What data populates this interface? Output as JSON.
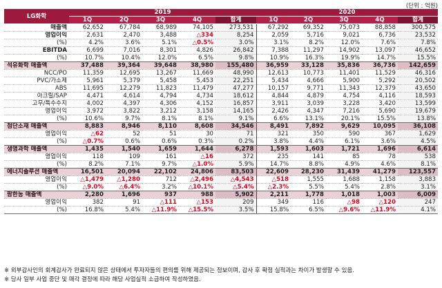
{
  "unit": "(단위 : 억원)",
  "header": {
    "company": "LG화학",
    "year1": "2019",
    "year2": "2020",
    "quarters": [
      "1Q",
      "2Q",
      "3Q",
      "4Q",
      "합계",
      "1Q",
      "2Q",
      "3Q",
      "4Q",
      "합계"
    ]
  },
  "rows": [
    {
      "label": "매출액",
      "style": "bold",
      "cells": [
        "62,652",
        "67,784",
        "68,989",
        "74,105",
        "273,531",
        "67,292",
        "69,352",
        "75,073",
        "88,858",
        "300,575"
      ]
    },
    {
      "label": "영업이익",
      "style": "bold",
      "cells": [
        "2,631",
        "2,470",
        "3,488",
        "△334",
        "8,254",
        "2,059",
        "5,716",
        "9,021",
        "6,736",
        "23,532"
      ]
    },
    {
      "label": "(%)",
      "style": "plain",
      "cells": [
        "4.2%",
        "3.6%",
        "5.1%",
        "△0.5%",
        "3.0%",
        "3.1%",
        "8.2%",
        "12.0%",
        "7.6%",
        "7.8%"
      ]
    },
    {
      "label": "EBITDA",
      "style": "bold",
      "cells": [
        "6,699",
        "7,016",
        "8,301",
        "4,826",
        "26,842",
        "7,388",
        "11,297",
        "14,902",
        "13,097",
        "46,652"
      ]
    },
    {
      "label": "(%)",
      "style": "plain",
      "rule": true,
      "cells": [
        "10.7%",
        "10.4%",
        "12.0%",
        "6.5%",
        "9.8%",
        "10.9%",
        "16.3%",
        "19.9%",
        "14.7%",
        "15.5%"
      ]
    },
    {
      "label": "석유화학 매출액",
      "style": "section",
      "cells": [
        "37,488",
        "39,364",
        "39,648",
        "38,980",
        "155,480",
        "36,959",
        "33,128",
        "35,836",
        "36,736",
        "142,659"
      ]
    },
    {
      "label": "NCC/PO",
      "style": "plain",
      "cells": [
        "11,359",
        "12,695",
        "13,267",
        "11,669",
        "48,990",
        "12,613",
        "10,773",
        "11,401",
        "11,529",
        "46,316"
      ]
    },
    {
      "label": "PVC/가소제",
      "style": "plain",
      "cells": [
        "5,961",
        "5,379",
        "5,458",
        "5,453",
        "22,251",
        "5,434",
        "4,666",
        "5,900",
        "5,292",
        "20,502"
      ]
    },
    {
      "label": "ABS",
      "style": "plain",
      "cells": [
        "11,695",
        "12,279",
        "11,823",
        "11,479",
        "47,277",
        "10,157",
        "9,771",
        "11,343",
        "12,379",
        "43,650"
      ]
    },
    {
      "label": "아크릴/SAP",
      "style": "plain",
      "cells": [
        "4,471",
        "4,614",
        "4,794",
        "4,734",
        "18,612",
        "4,844",
        "4,879",
        "4,754",
        "4,116",
        "18,593"
      ]
    },
    {
      "label": "고무/특수수지",
      "style": "plain",
      "cells": [
        "4,002",
        "4,397",
        "4,306",
        "4,152",
        "16,857",
        "3,911",
        "3,039",
        "3,228",
        "3,420",
        "13,599"
      ]
    },
    {
      "label": "영업이익",
      "style": "plain",
      "cells": [
        "3,972",
        "3,822",
        "3,212",
        "3,158",
        "14,165",
        "2,426",
        "4,347",
        "7,216",
        "5,690",
        "19,679"
      ]
    },
    {
      "label": "(%)",
      "style": "plain",
      "rule": true,
      "cells": [
        "10.6%",
        "9.7%",
        "8.1%",
        "8.1%",
        "9.1%",
        "6.6%",
        "13.1%",
        "20.1%",
        "15.5%",
        "13.8%"
      ]
    },
    {
      "label": "첨단소재 매출액",
      "style": "section",
      "cells": [
        "8,883",
        "8,946",
        "8,110",
        "8,608",
        "34,546",
        "8,491",
        "7,892",
        "9,629",
        "10,095",
        "36,108"
      ]
    },
    {
      "label": "영업이익",
      "style": "plain",
      "cells": [
        "△62",
        "52",
        "51",
        "30",
        "71",
        "321",
        "350",
        "590",
        "367",
        "1,629"
      ]
    },
    {
      "label": "(%)",
      "style": "plain",
      "rule": true,
      "cells": [
        "△0.7%",
        "0.6%",
        "0.6%",
        "0.3%",
        "0.2%",
        "3.8%",
        "4.4%",
        "6.1%",
        "3.6%",
        "4.5%"
      ]
    },
    {
      "label": "생명과학 매출액",
      "style": "section",
      "cells": [
        "1,435",
        "1,540",
        "1,659",
        "1,644",
        "6,278",
        "1,593",
        "1,603",
        "1,721",
        "1,696",
        "6,614"
      ]
    },
    {
      "label": "영업이익",
      "style": "plain",
      "cells": [
        "118",
        "109",
        "161",
        "△16",
        "372",
        "235",
        "141",
        "85",
        "78",
        "538"
      ]
    },
    {
      "label": "(%)",
      "style": "plain",
      "rule": true,
      "cells": [
        "8.2%",
        "7.1%",
        "9.7%",
        "△1.0%",
        "5.9%",
        "14.7%",
        "8.8%",
        "4.9%",
        "4.6%",
        "8.1%"
      ]
    },
    {
      "label": "에너지솔루션 매출액",
      "style": "section",
      "cells": [
        "16,501",
        "20,094",
        "22,102",
        "24,806",
        "83,503",
        "22,609",
        "28,230",
        "31,439",
        "41,279",
        "123,557"
      ]
    },
    {
      "label": "영업이익",
      "style": "plain",
      "cells": [
        "△1,479",
        "△1,280",
        "712",
        "△2,496",
        "△4,543",
        "△518",
        "1,555",
        "1,688",
        "1,158",
        "3,883"
      ]
    },
    {
      "label": "(%)",
      "style": "plain",
      "rule": true,
      "cells": [
        "△9.0%",
        "△6.4%",
        "3.2%",
        "△10.1%",
        "△5.4%",
        "△2.3%",
        "5.5%",
        "5.4%",
        "2.8%",
        "3.1%"
      ]
    },
    {
      "label": "팜한농 매출액",
      "style": "section",
      "cells": [
        "2,280",
        "1,696",
        "937",
        "988",
        "5,902",
        "2,211",
        "1,778",
        "1,018",
        "1,003",
        "6,009"
      ]
    },
    {
      "label": "영업이익",
      "style": "plain",
      "cells": [
        "382",
        "91",
        "△111",
        "△153",
        "209",
        "349",
        "116",
        "△98",
        "△120",
        "247"
      ]
    },
    {
      "label": "(%)",
      "style": "plain",
      "rule": true,
      "cells": [
        "16.8%",
        "5.4%",
        "△11.9%",
        "△15.5%",
        "3.5%",
        "15.8%",
        "6.5%",
        "△9.6%",
        "△11.9%",
        "4.1%"
      ]
    }
  ],
  "notes": [
    "※ 외부감사인의 회계감사가 완료되지 않은 상태에서 투자자들의 편의를 위해 제공되는 정보이며, 감사 후 확정 실적과는 차이가 발생할 수 있음.",
    "※ 당사 일부 사업 중단 및 매각 결정에 따라 해당 사업실적 소급하여 작성하였음."
  ]
}
